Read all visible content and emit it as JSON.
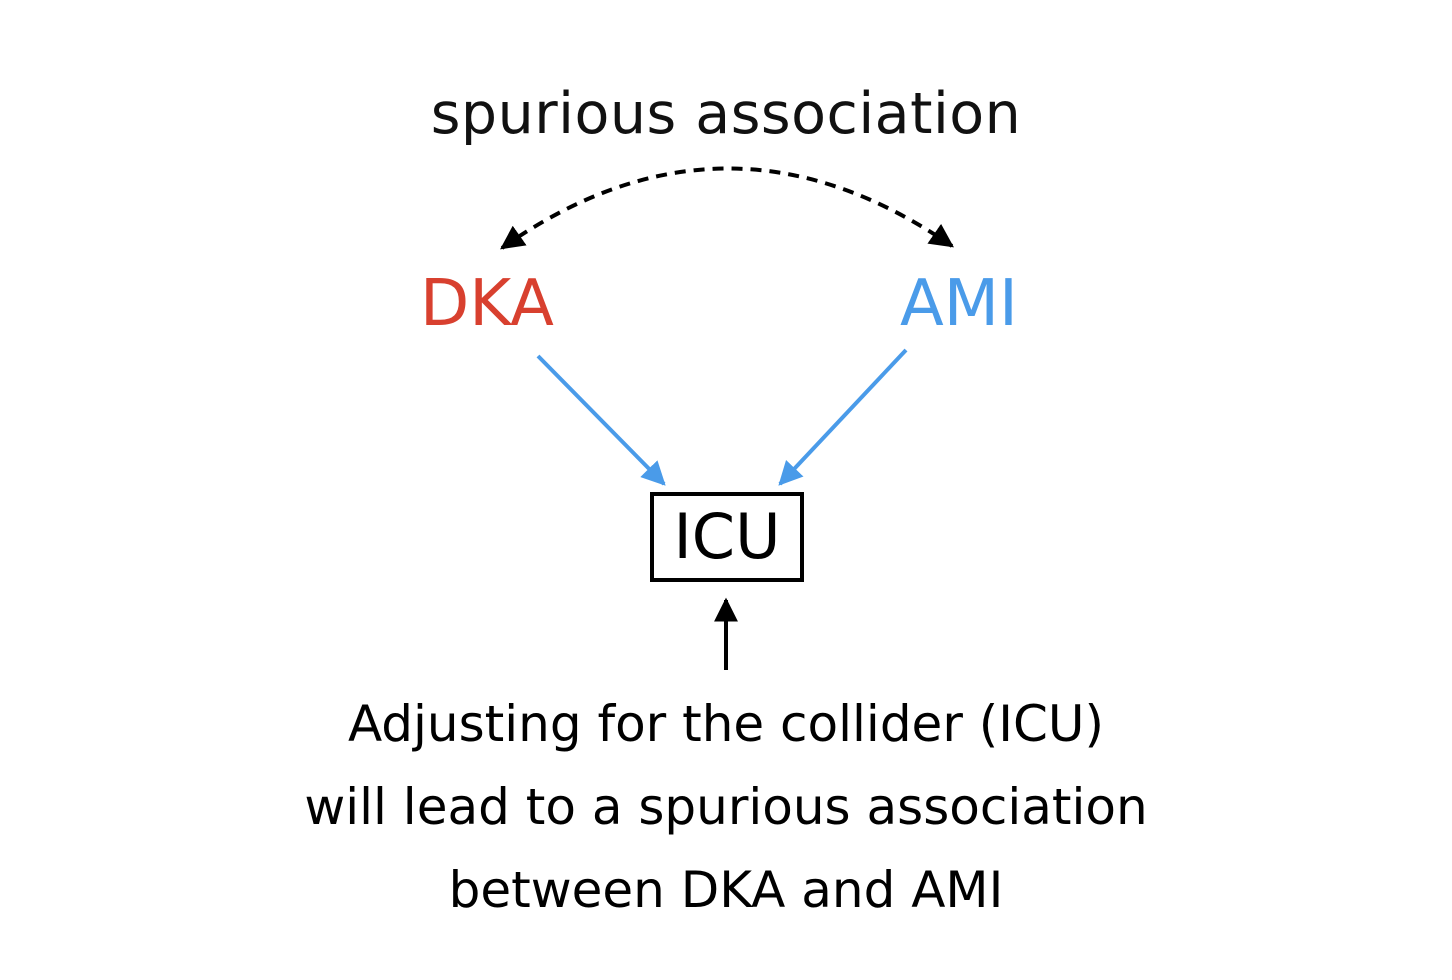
{
  "diagram": {
    "title": "spurious association",
    "nodes": {
      "dka": {
        "label": "DKA",
        "color": "#d8402f"
      },
      "ami": {
        "label": "AMI",
        "color": "#4a9be9"
      },
      "icu": {
        "label": "ICU",
        "color": "#000000"
      }
    },
    "edges": [
      {
        "from": "DKA",
        "to": "ICU",
        "style": "solid",
        "color": "#4a9be9"
      },
      {
        "from": "AMI",
        "to": "ICU",
        "style": "solid",
        "color": "#4a9be9"
      },
      {
        "from": "DKA",
        "to": "AMI",
        "style": "dashed-bidirectional",
        "color": "#000000"
      }
    ],
    "caption": [
      "Adjusting for the collider (ICU)",
      "will lead to a spurious association",
      "between DKA and AMI"
    ]
  }
}
